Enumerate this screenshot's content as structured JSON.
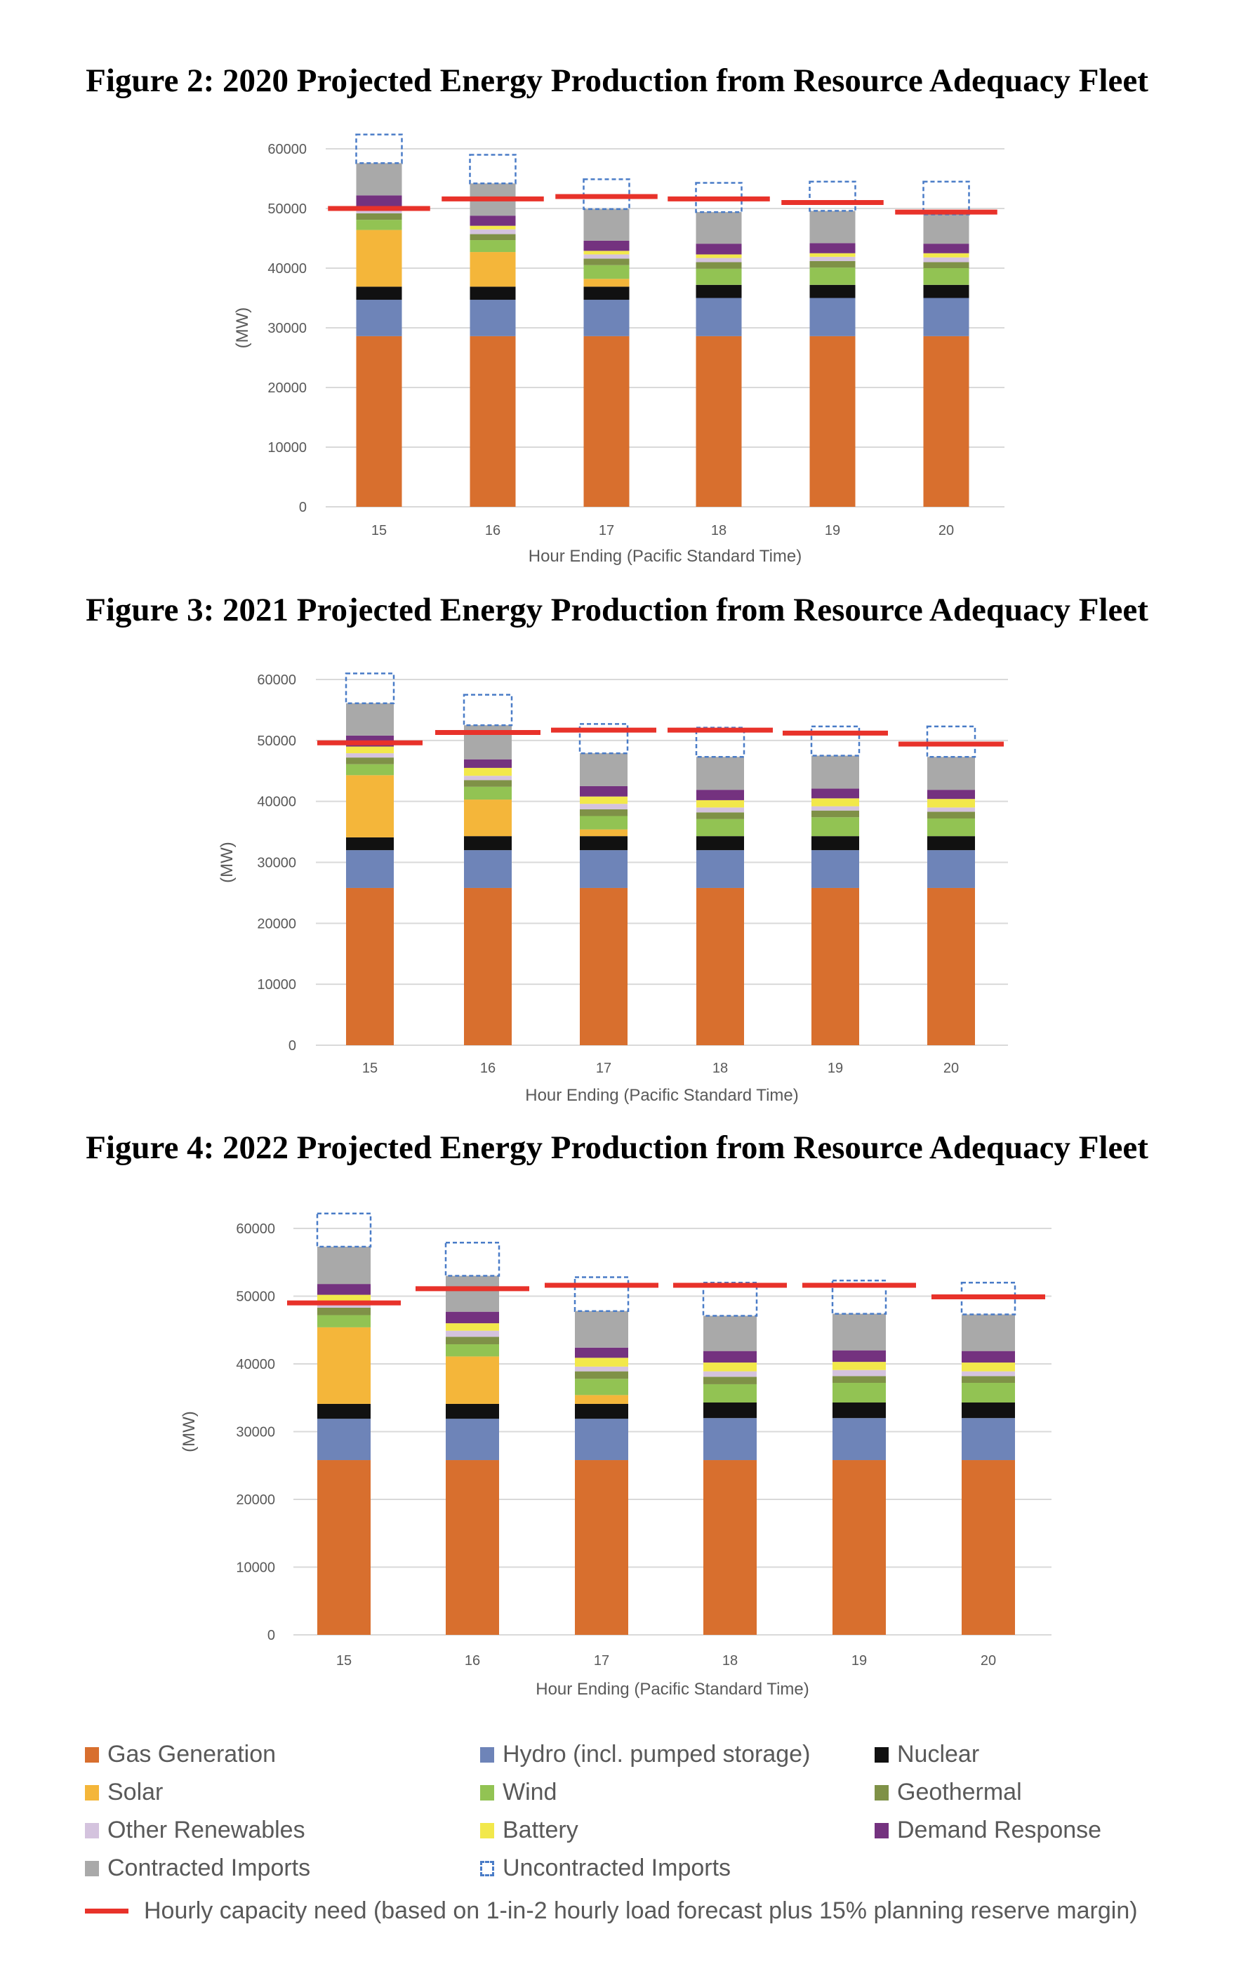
{
  "figures": [
    {
      "title": "Figure 2: 2020 Projected Energy Production from Resource Adequacy Fleet"
    },
    {
      "title": "Figure 3: 2021 Projected Energy Production from Resource Adequacy Fleet"
    },
    {
      "title": "Figure 4: 2022 Projected Energy Production from Resource Adequacy Fleet"
    }
  ],
  "legend": {
    "items": [
      {
        "label": "Gas Generation",
        "color": "#D86F2E"
      },
      {
        "label": "Hydro (incl. pumped storage)",
        "color": "#6E84B8"
      },
      {
        "label": "Nuclear",
        "color": "#111111"
      },
      {
        "label": "Solar",
        "color": "#F4B63A"
      },
      {
        "label": "Wind",
        "color": "#92C353"
      },
      {
        "label": "Geothermal",
        "color": "#7F9147"
      },
      {
        "label": "Other Renewables",
        "color": "#D4C3DE"
      },
      {
        "label": "Battery",
        "color": "#F2E84B"
      },
      {
        "label": "Demand Response",
        "color": "#74327F"
      },
      {
        "label": "Contracted Imports",
        "color": "#A9A9A9"
      },
      {
        "label": "Uncontracted Imports",
        "color": "#4A7CC7",
        "style": "dashed"
      }
    ],
    "need_line": {
      "label": "Hourly capacity need (based on 1-in-2 hourly load forecast plus 15% planning reserve margin)",
      "color": "#E8322A"
    }
  },
  "chart_data": [
    {
      "type": "bar",
      "stacked": true,
      "title": "Figure 2: 2020 Projected Energy Production from Resource Adequacy Fleet",
      "xlabel": "Hour Ending (Pacific Standard Time)",
      "ylabel": "(MW)",
      "ylim": [
        0,
        60000
      ],
      "yticks": [
        0,
        10000,
        20000,
        30000,
        40000,
        50000,
        60000
      ],
      "grid": true,
      "categories": [
        "15",
        "16",
        "17",
        "18",
        "19",
        "20"
      ],
      "series": [
        {
          "name": "Gas Generation",
          "values": [
            28600,
            28600,
            28600,
            28600,
            28600,
            28600
          ]
        },
        {
          "name": "Hydro (incl. pumped storage)",
          "values": [
            6100,
            6100,
            6100,
            6400,
            6400,
            6400
          ]
        },
        {
          "name": "Nuclear",
          "values": [
            2200,
            2200,
            2200,
            2200,
            2200,
            2200
          ]
        },
        {
          "name": "Solar",
          "values": [
            9500,
            5800,
            1300,
            0,
            0,
            0
          ]
        },
        {
          "name": "Wind",
          "values": [
            1700,
            2000,
            2300,
            2700,
            2900,
            2800
          ]
        },
        {
          "name": "Geothermal",
          "values": [
            1100,
            1000,
            1100,
            1100,
            1100,
            1000
          ]
        },
        {
          "name": "Other Renewables",
          "values": [
            500,
            800,
            700,
            700,
            700,
            800
          ]
        },
        {
          "name": "Battery",
          "values": [
            600,
            600,
            600,
            600,
            600,
            700
          ]
        },
        {
          "name": "Demand Response",
          "values": [
            1900,
            1700,
            1700,
            1800,
            1700,
            1600
          ]
        },
        {
          "name": "Contracted Imports",
          "values": [
            5400,
            5400,
            5300,
            5300,
            5400,
            4900
          ]
        },
        {
          "name": "Uncontracted Imports",
          "values": [
            4800,
            4800,
            5000,
            4900,
            4900,
            5500
          ]
        }
      ],
      "capacity_need": [
        50000,
        51600,
        52000,
        51600,
        51000,
        49400
      ]
    },
    {
      "type": "bar",
      "stacked": true,
      "title": "Figure 3: 2021 Projected Energy Production from Resource Adequacy Fleet",
      "xlabel": "Hour Ending (Pacific Standard Time)",
      "ylabel": "(MW)",
      "ylim": [
        0,
        60000
      ],
      "yticks": [
        0,
        10000,
        20000,
        30000,
        40000,
        50000,
        60000
      ],
      "grid": true,
      "categories": [
        "15",
        "16",
        "17",
        "18",
        "19",
        "20"
      ],
      "series": [
        {
          "name": "Gas Generation",
          "values": [
            25800,
            25800,
            25800,
            25800,
            25800,
            25800
          ]
        },
        {
          "name": "Hydro (incl. pumped storage)",
          "values": [
            6200,
            6200,
            6200,
            6200,
            6200,
            6200
          ]
        },
        {
          "name": "Nuclear",
          "values": [
            2100,
            2300,
            2300,
            2300,
            2300,
            2300
          ]
        },
        {
          "name": "Solar",
          "values": [
            10200,
            6000,
            1100,
            0,
            0,
            0
          ]
        },
        {
          "name": "Wind",
          "values": [
            1800,
            2100,
            2200,
            2800,
            3100,
            2900
          ]
        },
        {
          "name": "Geothermal",
          "values": [
            1100,
            1100,
            1100,
            1100,
            1100,
            1100
          ]
        },
        {
          "name": "Other Renewables",
          "values": [
            700,
            700,
            900,
            800,
            700,
            700
          ]
        },
        {
          "name": "Battery",
          "values": [
            1100,
            1300,
            1200,
            1200,
            1300,
            1400
          ]
        },
        {
          "name": "Demand Response",
          "values": [
            1800,
            1400,
            1700,
            1700,
            1600,
            1500
          ]
        },
        {
          "name": "Contracted Imports",
          "values": [
            5300,
            5600,
            5400,
            5400,
            5400,
            5400
          ]
        },
        {
          "name": "Uncontracted Imports",
          "values": [
            4900,
            5000,
            4800,
            4800,
            4800,
            5000
          ]
        }
      ],
      "capacity_need": [
        49600,
        51300,
        51700,
        51700,
        51200,
        49400
      ]
    },
    {
      "type": "bar",
      "stacked": true,
      "title": "Figure 4: 2022 Projected Energy Production from Resource Adequacy Fleet",
      "xlabel": "Hour Ending (Pacific Standard Time)",
      "ylabel": "(MW)",
      "ylim": [
        0,
        60000
      ],
      "yticks": [
        0,
        10000,
        20000,
        30000,
        40000,
        50000,
        60000
      ],
      "grid": true,
      "categories": [
        "15",
        "16",
        "17",
        "18",
        "19",
        "20"
      ],
      "series": [
        {
          "name": "Gas Generation",
          "values": [
            25800,
            25800,
            25800,
            25800,
            25800,
            25800
          ]
        },
        {
          "name": "Hydro (incl. pumped storage)",
          "values": [
            6100,
            6100,
            6100,
            6200,
            6200,
            6200
          ]
        },
        {
          "name": "Nuclear",
          "values": [
            2200,
            2200,
            2200,
            2300,
            2300,
            2300
          ]
        },
        {
          "name": "Solar",
          "values": [
            11300,
            7000,
            1300,
            0,
            0,
            0
          ]
        },
        {
          "name": "Wind",
          "values": [
            1800,
            1800,
            2400,
            2700,
            2900,
            2900
          ]
        },
        {
          "name": "Geothermal",
          "values": [
            1100,
            1100,
            1100,
            1100,
            1000,
            1000
          ]
        },
        {
          "name": "Other Renewables",
          "values": [
            400,
            900,
            700,
            800,
            900,
            700
          ]
        },
        {
          "name": "Battery",
          "values": [
            1500,
            1100,
            1300,
            1300,
            1200,
            1300
          ]
        },
        {
          "name": "Demand Response",
          "values": [
            1600,
            1700,
            1500,
            1700,
            1700,
            1700
          ]
        },
        {
          "name": "Contracted Imports",
          "values": [
            5500,
            5300,
            5400,
            5200,
            5400,
            5400
          ]
        },
        {
          "name": "Uncontracted Imports",
          "values": [
            4900,
            4900,
            5000,
            4900,
            4900,
            4700
          ]
        }
      ],
      "capacity_need": [
        49000,
        51100,
        51600,
        51600,
        51600,
        49900
      ]
    }
  ]
}
